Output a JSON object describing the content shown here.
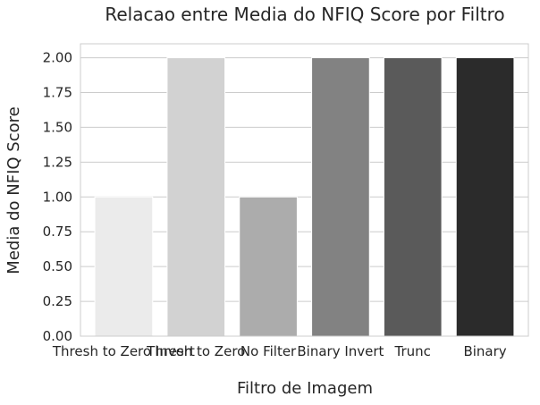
{
  "chart_data": {
    "type": "bar",
    "title": "Relacao entre Media do NFIQ Score por Filtro",
    "xlabel": "Filtro de Imagem",
    "ylabel": "Media do NFIQ Score",
    "categories": [
      "Thresh to Zero Invert",
      "Thresh to Zero",
      "No Filter",
      "Binary Invert",
      "Trunc",
      "Binary"
    ],
    "values": [
      1.0,
      2.0,
      1.0,
      2.0,
      2.0,
      2.0
    ],
    "colors": [
      "#ebebeb",
      "#d2d2d2",
      "#acacac",
      "#828282",
      "#5a5a5a",
      "#2b2b2b"
    ],
    "ylim": [
      0,
      2.1
    ],
    "yticks": [
      "0.00",
      "0.25",
      "0.50",
      "0.75",
      "1.00",
      "1.25",
      "1.50",
      "1.75",
      "2.00"
    ],
    "grid": "horizontal",
    "legend": "none"
  }
}
